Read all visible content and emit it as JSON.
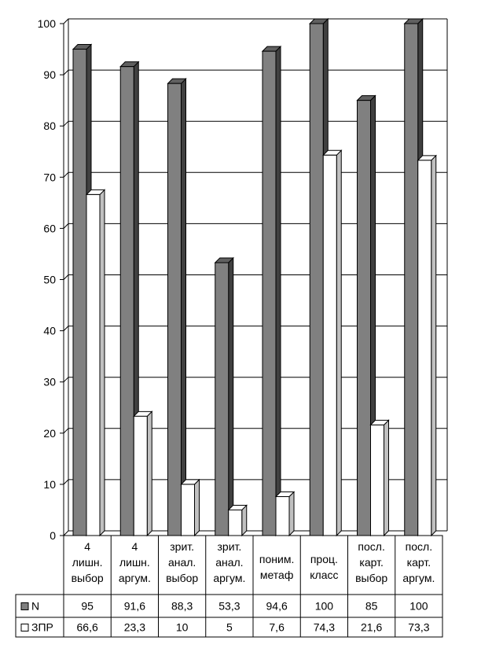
{
  "chart_data": {
    "type": "bar",
    "categories": [
      [
        "4",
        "лишн.",
        "выбор"
      ],
      [
        "4",
        "лишн.",
        "аргум."
      ],
      [
        "зрит.",
        "анал.",
        "выбор"
      ],
      [
        "зрит.",
        "анал.",
        "аргум."
      ],
      [
        "поним.",
        "метаф"
      ],
      [
        "проц.",
        "класс"
      ],
      [
        "посл.",
        "карт.",
        "выбор"
      ],
      [
        "посл.",
        "карт.",
        "аргум."
      ]
    ],
    "series": [
      {
        "name": "N",
        "values": [
          95,
          91.6,
          88.3,
          53.3,
          94.6,
          100,
          85,
          100
        ],
        "labels": [
          "95",
          "91,6",
          "88,3",
          "53,3",
          "94,6",
          "100",
          "85",
          "100"
        ],
        "color": "#808080"
      },
      {
        "name": "ЗПР",
        "values": [
          66.6,
          23.3,
          10,
          5,
          7.6,
          74.3,
          21.6,
          73.3
        ],
        "labels": [
          "66,6",
          "23,3",
          "10",
          "5",
          "7,6",
          "74,3",
          "21,6",
          "73,3"
        ],
        "color": "#ffffff"
      }
    ],
    "ylim": [
      0,
      100
    ],
    "yticks": [
      "0",
      "10",
      "20",
      "30",
      "40",
      "50",
      "60",
      "70",
      "80",
      "90",
      "100"
    ],
    "grid": true,
    "legend": "data-table",
    "three_d": true
  }
}
